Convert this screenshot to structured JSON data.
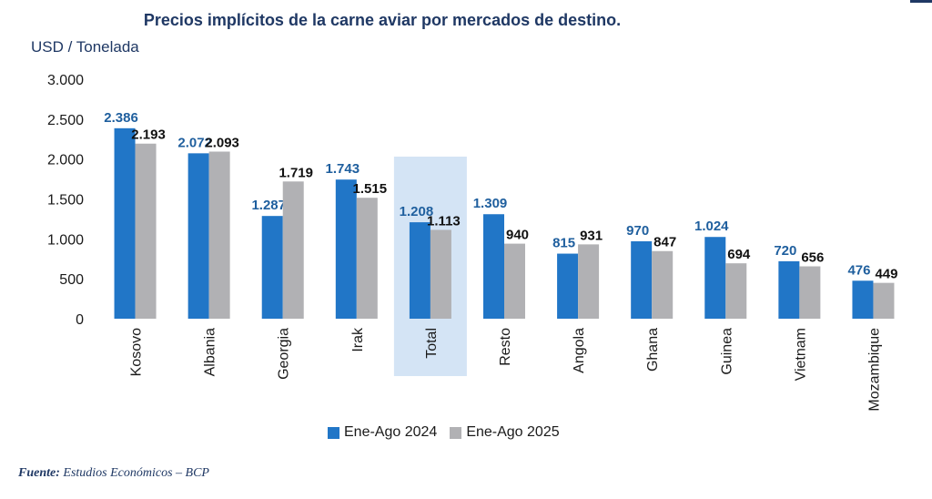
{
  "title": "Precios implícitos de la carne aviar por mercados de destino.",
  "unit_label": "USD / Tonelada",
  "source": {
    "key": "Fuente:",
    "text": "Estudios Económicos – BCP"
  },
  "colors": {
    "series_2024": "#2176c7",
    "series_2025": "#b1b1b4",
    "highlight": "#d4e4f5",
    "label_2024": "#1f5f9e",
    "label_2025": "#111111"
  },
  "chart_data": {
    "type": "bar",
    "title": "Precios implícitos de la carne aviar por mercados de destino.",
    "ylabel": "USD / Tonelada",
    "xlabel": "",
    "ylim": [
      0,
      3000
    ],
    "yticks": [
      0,
      500,
      1000,
      1500,
      2000,
      2500,
      3000
    ],
    "ytick_labels": [
      "0",
      "500",
      "1.000",
      "1.500",
      "2.000",
      "2.500",
      "3.000"
    ],
    "categories": [
      "Kosovo",
      "Albania",
      "Georgia",
      "Irak",
      "Total",
      "Resto",
      "Angola",
      "Ghana",
      "Guinea",
      "Vietnam",
      "Mozambique"
    ],
    "highlighted_category": "Total",
    "series": [
      {
        "name": "Ene-Ago 2024",
        "values": [
          2386,
          2072,
          1287,
          1743,
          1208,
          1309,
          815,
          970,
          1024,
          720,
          476
        ],
        "labels": [
          "2.386",
          "2.072",
          "1.287",
          "1.743",
          "1.208",
          "1.309",
          "815",
          "970",
          "1.024",
          "720",
          "476"
        ]
      },
      {
        "name": "Ene-Ago 2025",
        "values": [
          2193,
          2093,
          1719,
          1515,
          1113,
          940,
          931,
          847,
          694,
          656,
          449
        ],
        "labels": [
          "2.193",
          "2.093",
          "1.719",
          "1.515",
          "1.113",
          "940",
          "931",
          "847",
          "694",
          "656",
          "449"
        ]
      }
    ],
    "grid": false,
    "legend_position": "bottom"
  }
}
